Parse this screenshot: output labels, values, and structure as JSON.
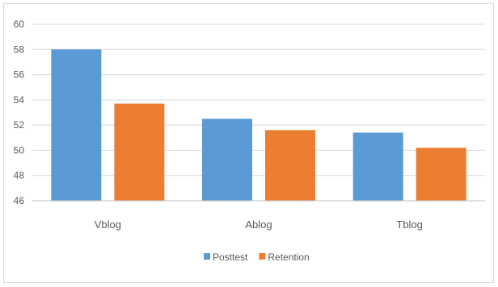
{
  "chart_data": {
    "type": "bar",
    "categories": [
      "Vblog",
      "Ablog",
      "Tblog"
    ],
    "series": [
      {
        "name": "Posttest",
        "values": [
          58.0,
          52.5,
          51.4
        ],
        "color": "#5b9bd5"
      },
      {
        "name": "Retention",
        "values": [
          53.7,
          51.6,
          50.2
        ],
        "color": "#ed7d31"
      }
    ],
    "ylim": [
      46,
      60
    ],
    "yticks": [
      46,
      48,
      50,
      52,
      54,
      56,
      58,
      60
    ],
    "grid": true,
    "legend_position": "bottom",
    "title": "",
    "xlabel": "",
    "ylabel": ""
  }
}
